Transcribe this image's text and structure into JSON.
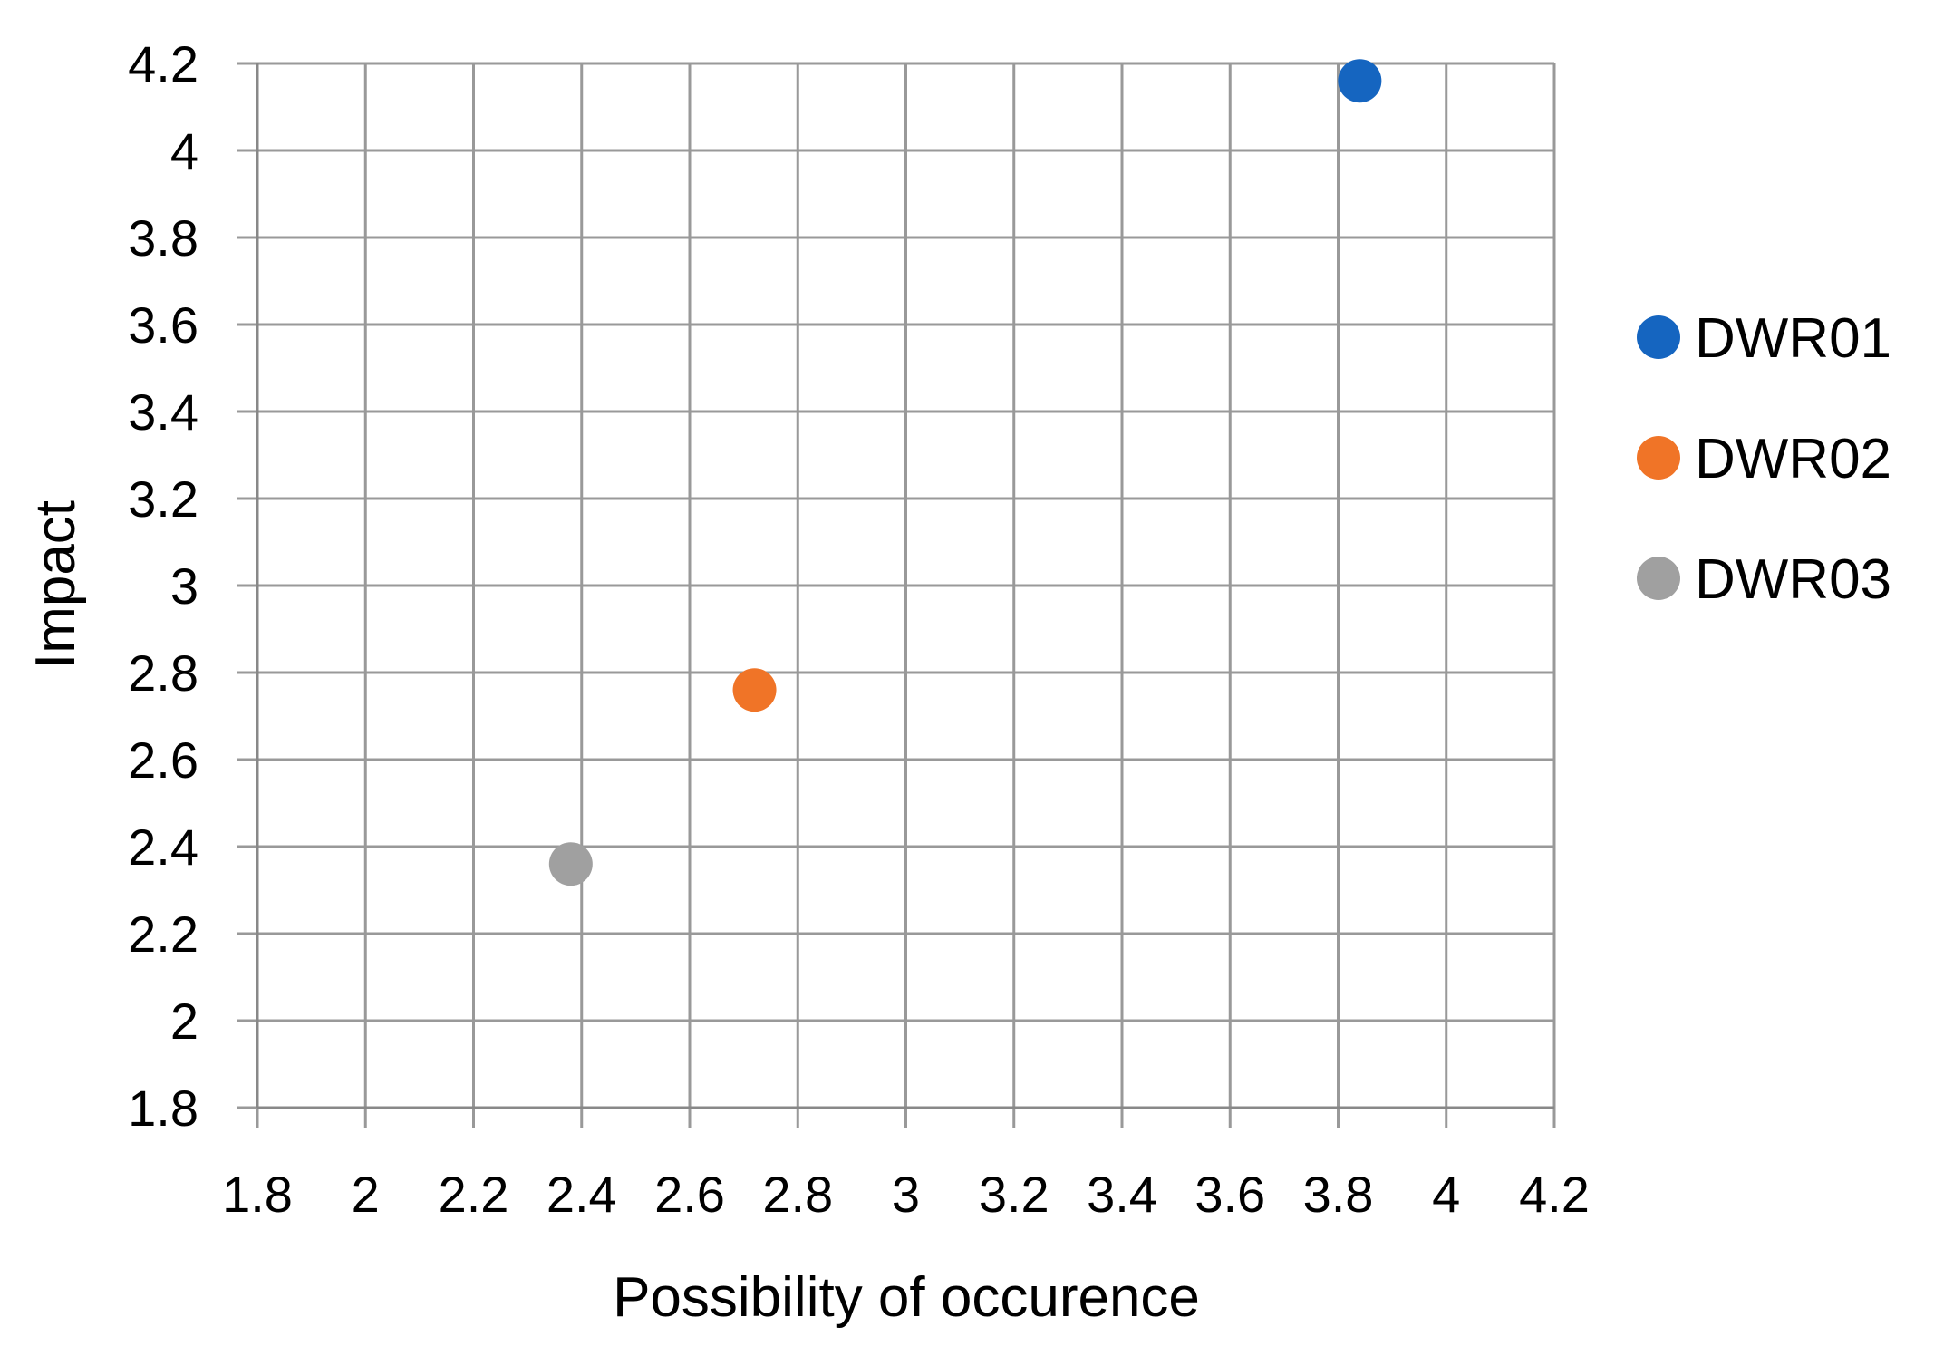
{
  "chart_data": {
    "type": "scatter",
    "xlabel": "Possibility of occurence",
    "ylabel": "Impact",
    "xlim": [
      1.8,
      4.2
    ],
    "ylim": [
      1.8,
      4.2
    ],
    "xticks": [
      "1.8",
      "2",
      "2.2",
      "2.4",
      "2.6",
      "2.8",
      "3",
      "3.2",
      "3.4",
      "3.6",
      "3.8",
      "4",
      "4.2"
    ],
    "yticks": [
      "1.8",
      "2",
      "2.2",
      "2.4",
      "2.6",
      "2.8",
      "3",
      "3.2",
      "3.4",
      "3.6",
      "3.8",
      "4",
      "4.2"
    ],
    "grid": true,
    "legend_position": "right",
    "series": [
      {
        "name": "DWR01",
        "color": "#1565c0",
        "points": [
          {
            "x": 3.84,
            "y": 4.16
          }
        ]
      },
      {
        "name": "DWR02",
        "color": "#f07427",
        "points": [
          {
            "x": 2.72,
            "y": 2.76
          }
        ]
      },
      {
        "name": "DWR03",
        "color": "#a0a0a0",
        "points": [
          {
            "x": 2.38,
            "y": 2.36
          }
        ]
      }
    ]
  }
}
